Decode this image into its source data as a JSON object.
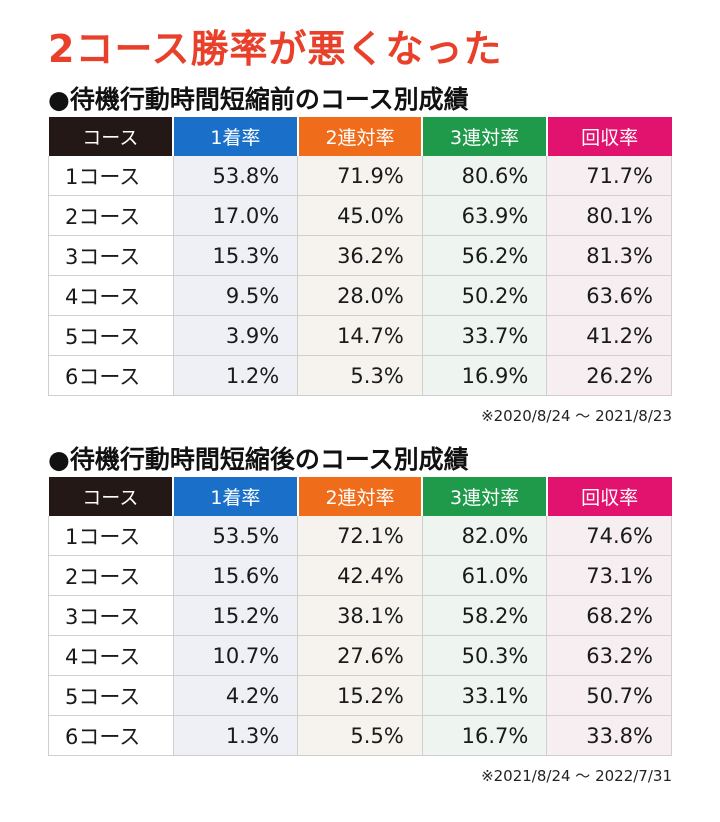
{
  "title": "2コース勝率が悪くなった",
  "colors": {
    "title": "#e8402a",
    "course": "#231815",
    "win": "#1a70c8",
    "quinella": "#ef6c1a",
    "trio": "#1f9a4a",
    "recovery": "#e2126f"
  },
  "headers": [
    "コース",
    "1着率",
    "2連対率",
    "3連対率",
    "回収率"
  ],
  "before": {
    "title": "●待機行動時間短縮前のコース別成績",
    "rows": [
      [
        "1コース",
        "53.8%",
        "71.9%",
        "80.6%",
        "71.7%"
      ],
      [
        "2コース",
        "17.0%",
        "45.0%",
        "63.9%",
        "80.1%"
      ],
      [
        "3コース",
        "15.3%",
        "36.2%",
        "56.2%",
        "81.3%"
      ],
      [
        "4コース",
        "9.5%",
        "28.0%",
        "50.2%",
        "63.6%"
      ],
      [
        "5コース",
        "3.9%",
        "14.7%",
        "33.7%",
        "41.2%"
      ],
      [
        "6コース",
        "1.2%",
        "5.3%",
        "16.9%",
        "26.2%"
      ]
    ],
    "note": "※2020/8/24 ～ 2021/8/23"
  },
  "after": {
    "title": "●待機行動時間短縮後のコース別成績",
    "rows": [
      [
        "1コース",
        "53.5%",
        "72.1%",
        "82.0%",
        "74.6%"
      ],
      [
        "2コース",
        "15.6%",
        "42.4%",
        "61.0%",
        "73.1%"
      ],
      [
        "3コース",
        "15.2%",
        "38.1%",
        "58.2%",
        "68.2%"
      ],
      [
        "4コース",
        "10.7%",
        "27.6%",
        "50.3%",
        "63.2%"
      ],
      [
        "5コース",
        "4.2%",
        "15.2%",
        "33.1%",
        "50.7%"
      ],
      [
        "6コース",
        "1.3%",
        "5.5%",
        "16.7%",
        "33.8%"
      ]
    ],
    "note": "※2021/8/24 ～ 2022/7/31"
  }
}
